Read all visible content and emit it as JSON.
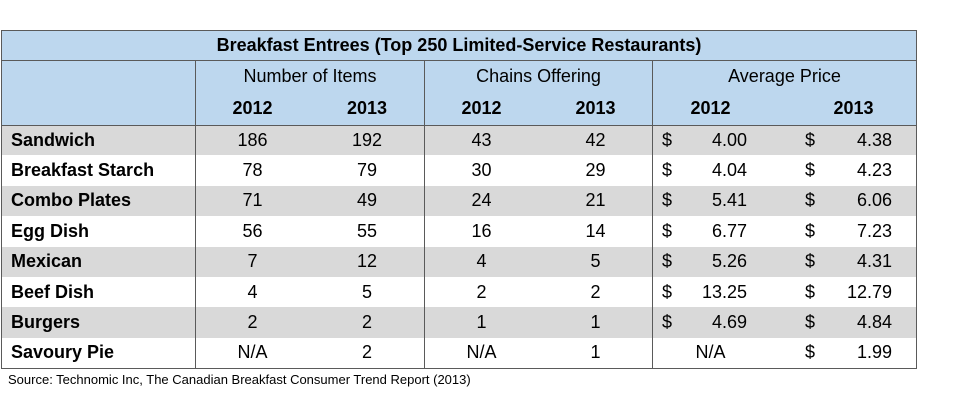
{
  "chart_data": {
    "type": "table",
    "title": "Breakfast Entrees (Top 250 Limited-Service Restaurants)",
    "groups": [
      "Number of Items",
      "Chains Offering",
      "Average Price"
    ],
    "years": [
      "2012",
      "2013"
    ],
    "currency_symbol": "$",
    "rows": [
      {
        "label": "Sandwich",
        "values": [
          "186",
          "192",
          "43",
          "42",
          "4.00",
          "4.38"
        ]
      },
      {
        "label": "Breakfast Starch",
        "values": [
          "78",
          "79",
          "30",
          "29",
          "4.04",
          "4.23"
        ]
      },
      {
        "label": "Combo Plates",
        "values": [
          "71",
          "49",
          "24",
          "21",
          "5.41",
          "6.06"
        ]
      },
      {
        "label": "Egg Dish",
        "values": [
          "56",
          "55",
          "16",
          "14",
          "6.77",
          "7.23"
        ]
      },
      {
        "label": "Mexican",
        "values": [
          "7",
          "12",
          "4",
          "5",
          "5.26",
          "4.31"
        ]
      },
      {
        "label": "Beef Dish",
        "values": [
          "4",
          "5",
          "2",
          "2",
          "13.25",
          "12.79"
        ]
      },
      {
        "label": "Burgers",
        "values": [
          "2",
          "2",
          "1",
          "1",
          "4.69",
          "4.84"
        ]
      },
      {
        "label": "Savoury Pie",
        "values": [
          "N/A",
          "2",
          "N/A",
          "1",
          "N/A",
          "1.99"
        ]
      }
    ],
    "colors": {
      "header_fill": "#bdd7ee",
      "band_fill": "#d9d9d9",
      "border": "#5a5a5a"
    }
  },
  "source": "Source: Technomic Inc, The Canadian Breakfast Consumer Trend Report (2013)"
}
